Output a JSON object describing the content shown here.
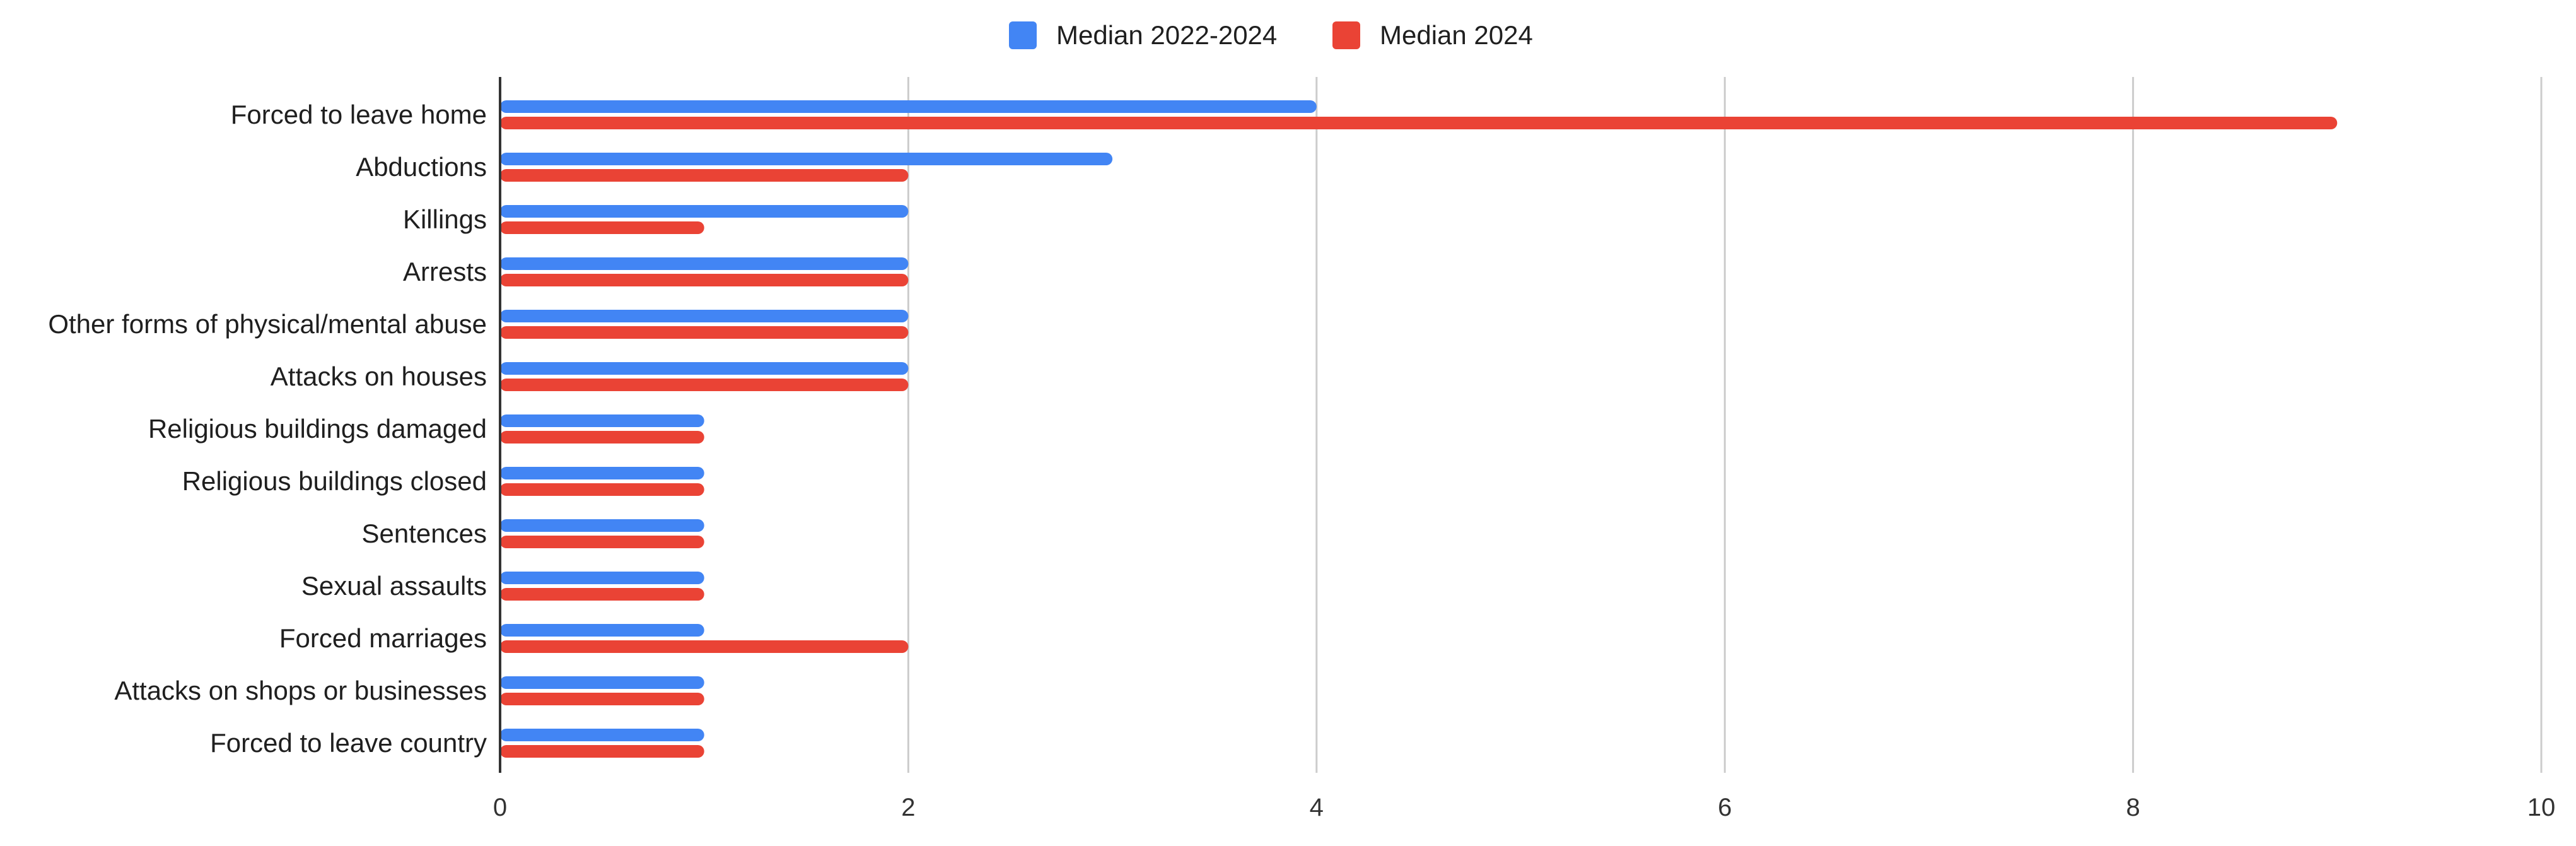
{
  "chart_data": {
    "type": "bar",
    "orientation": "horizontal",
    "categories": [
      "Forced to leave home",
      "Abductions",
      "Killings",
      "Arrests",
      "Other forms of physical/mental abuse",
      "Attacks on houses",
      "Religious buildings damaged",
      "Religious buildings closed",
      "Sentences",
      "Sexual assaults",
      "Forced marriages",
      "Attacks on shops or businesses",
      "Forced to leave country"
    ],
    "series": [
      {
        "name": "Median 2022-2024",
        "color": "#4285F4",
        "values": [
          4,
          3,
          2,
          2,
          2,
          2,
          1,
          1,
          1,
          1,
          1,
          1,
          1
        ]
      },
      {
        "name": "Median 2024",
        "color": "#EA4335",
        "values": [
          9,
          2,
          1,
          2,
          2,
          2,
          1,
          1,
          1,
          1,
          2,
          1,
          1
        ]
      }
    ],
    "xlim": [
      0,
      10
    ],
    "xticks": [
      "0",
      "2",
      "4",
      "6",
      "8",
      "10"
    ],
    "grid": true,
    "legend_position": "top-center",
    "title": "",
    "xlabel": "",
    "ylabel": ""
  }
}
